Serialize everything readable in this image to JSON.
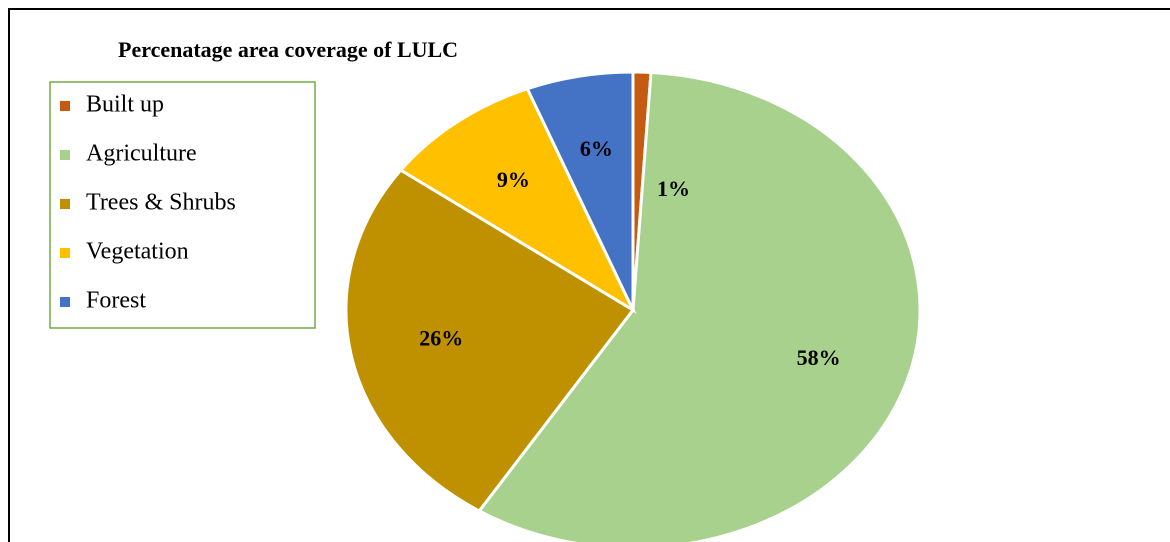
{
  "chart_data": {
    "type": "pie",
    "title": "Percenatage area coverage of LULC",
    "categories": [
      "Built up",
      "Agriculture",
      "Trees & Shrubs",
      "Vegetation",
      "Forest"
    ],
    "values": [
      1,
      58,
      26,
      9,
      6
    ],
    "value_labels": [
      "1%",
      "58%",
      "26%",
      "9%",
      "6%"
    ],
    "colors": [
      "#c55a11",
      "#a9d18e",
      "#bf9000",
      "#ffc000",
      "#4472c4"
    ],
    "legend": "left"
  }
}
